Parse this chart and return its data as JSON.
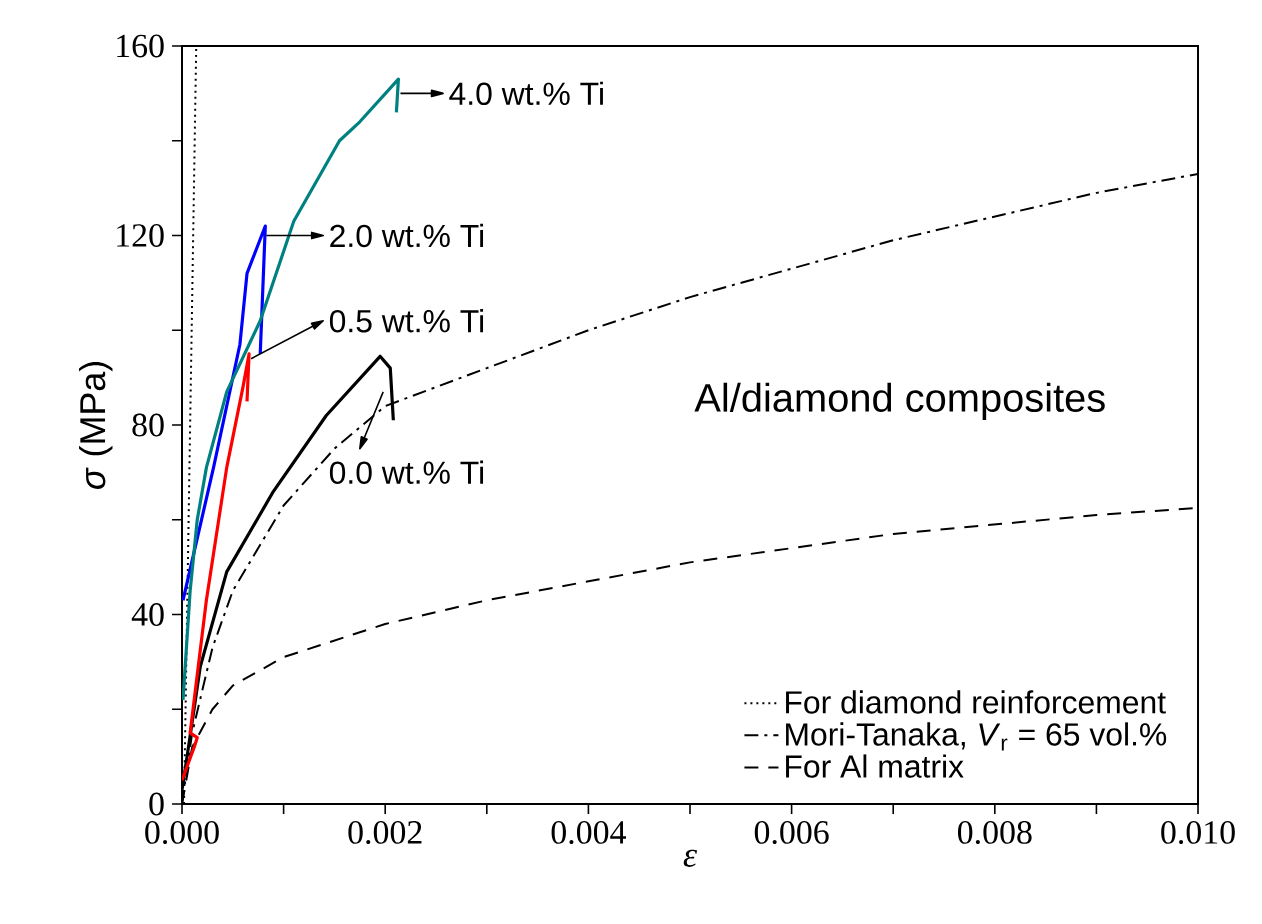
{
  "chart_data": {
    "type": "line",
    "xlabel": "ε",
    "ylabel": "*σ* (MPa)",
    "xlim": [
      0,
      0.01
    ],
    "ylim": [
      0,
      160
    ],
    "xticks": [
      {
        "value": 0,
        "label": "0.000"
      },
      {
        "value": 0.001,
        "label": null
      },
      {
        "value": 0.002,
        "label": "0.002"
      },
      {
        "value": 0.003,
        "label": null
      },
      {
        "value": 0.004,
        "label": "0.004"
      },
      {
        "value": 0.005,
        "label": null
      },
      {
        "value": 0.006,
        "label": "0.006"
      },
      {
        "value": 0.007,
        "label": null
      },
      {
        "value": 0.008,
        "label": "0.008"
      },
      {
        "value": 0.009,
        "label": null
      },
      {
        "value": 0.01,
        "label": "0.010"
      }
    ],
    "yticks": [
      0,
      {
        "value": 20,
        "label": null
      },
      40,
      {
        "value": 60,
        "label": null
      },
      80,
      {
        "value": 100,
        "label": null
      },
      120,
      {
        "value": 140,
        "label": null
      },
      160
    ],
    "grid": false,
    "legend": "bottom right",
    "marker": "none",
    "series": [
      {
        "name": "For diamond reinforcement",
        "color": "#000000",
        "line_style": "dotted",
        "x": [
          2e-05,
          5e-05,
          8e-05,
          0.00011,
          0.00014
        ],
        "values": [
          0,
          40,
          80,
          120,
          160
        ]
      },
      {
        "name": "Mori-Tanaka, *V*$_{r}$ = 65 vol.%",
        "color": "#000000",
        "line_style": "dashdot",
        "x": [
          0,
          0.0001,
          0.0003,
          0.0005,
          0.001,
          0.0015,
          0.002,
          0.003,
          0.004,
          0.005,
          0.006,
          0.007,
          0.008,
          0.009,
          0.01
        ],
        "values": [
          0,
          15,
          33,
          45,
          63,
          75,
          84,
          92,
          100,
          107,
          113,
          119,
          124,
          129,
          133
        ]
      },
      {
        "name": "For Al matrix",
        "color": "#000000",
        "line_style": "dashed",
        "x": [
          0,
          0.0001,
          0.0003,
          0.0005,
          0.001,
          0.002,
          0.003,
          0.004,
          0.005,
          0.006,
          0.007,
          0.008,
          0.009,
          0.01
        ],
        "values": [
          0,
          12,
          20,
          25,
          31,
          38,
          43,
          47,
          51,
          54,
          57,
          59,
          61,
          62.5
        ]
      },
      {
        "color": "#000000",
        "line_style": "solid",
        "x": [
          0,
          5e-05,
          0.00018,
          0.00044,
          0.0009,
          0.00142,
          0.00195,
          0.00205,
          0.00208
        ],
        "values": [
          3,
          10,
          29,
          49,
          66,
          82,
          94.5,
          92,
          81
        ]
      },
      {
        "color": "#ff0000",
        "line_style": "solid",
        "x": [
          0,
          0.00012,
          0.00015,
          8e-05,
          0.00012,
          0.00024,
          0.00044,
          0.0006,
          0.00066,
          0.00064
        ],
        "values": [
          5,
          12,
          14,
          15,
          22,
          43,
          71,
          88,
          95,
          85
        ]
      },
      {
        "color": "#0000ff",
        "line_style": "solid",
        "x": [
          1e-05,
          0.00031,
          0.00057,
          0.00064,
          0.00082,
          0.00077
        ],
        "values": [
          43,
          71,
          97,
          112,
          122,
          95
        ]
      },
      {
        "color": "#008080",
        "line_style": "solid",
        "x": [
          1e-05,
          8e-05,
          0.00015,
          0.00024,
          0.00044,
          0.00077,
          0.0011,
          0.00155,
          0.00175,
          0.00213,
          0.00211
        ],
        "values": [
          22,
          45,
          60,
          71,
          87,
          102,
          123,
          140,
          144,
          153,
          146
        ]
      }
    ],
    "annotations": [
      {
        "text": "4.0 wt.% Ti",
        "x": 0.00215,
        "y": 150
      },
      {
        "text": "2.0 wt.% Ti",
        "x": 0.00083,
        "y": 120
      },
      {
        "text": "0.5 wt.% Ti",
        "x": 0.00068,
        "y": 94
      },
      {
        "text": "0.0 wt.% Ti",
        "x": 0.00198,
        "y": 87
      },
      "Al/diamond composites"
    ]
  }
}
